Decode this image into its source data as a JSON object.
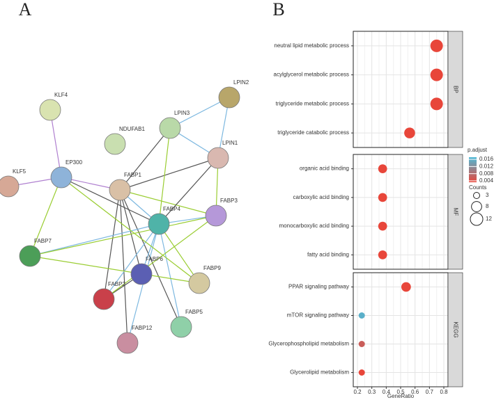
{
  "network": {
    "label": "A",
    "nodes": [
      "KLF4",
      "LPIN2",
      "LPIN3",
      "NDUFAB1",
      "LPIN1",
      "EP300",
      "KLF5",
      "FABP1",
      "FABP3",
      "FABP4",
      "FABP7",
      "FABP6",
      "FABP9",
      "FABP2",
      "FABP5",
      "FABP12"
    ]
  },
  "chart_data": {
    "type": "dot",
    "label": "B",
    "x_label": "GeneRatio",
    "xlim": [
      0.2,
      0.8
    ],
    "xticks": [
      0.2,
      0.3,
      0.4,
      0.5,
      0.6,
      0.7,
      0.8
    ],
    "grid": true,
    "facets": [
      {
        "name": "BP",
        "categories": [
          "neutral lipid metabolic process",
          "acylglycerol metabolic process",
          "triglyceride metabolic process",
          "triglyceride catabolic process"
        ],
        "values": [
          0.75,
          0.75,
          0.75,
          0.5625
        ],
        "counts": [
          12,
          12,
          12,
          9
        ],
        "p_adjust": [
          0.001,
          0.001,
          0.001,
          0.001
        ]
      },
      {
        "name": "MF",
        "categories": [
          "organic acid binding",
          "carboxylic acid binding",
          "monocarboxylic acid binding",
          "fatty acid binding"
        ],
        "values": [
          0.375,
          0.375,
          0.375,
          0.375
        ],
        "counts": [
          6,
          6,
          6,
          6
        ],
        "p_adjust": [
          0.001,
          0.001,
          0.001,
          0.001
        ]
      },
      {
        "name": "KEGG",
        "categories": [
          "PPAR signaling pathway",
          "mTOR signaling pathway",
          "Glycerophospholipid metabolism",
          "Glycerolipid metabolism"
        ],
        "values": [
          0.538,
          0.23,
          0.23,
          0.23
        ],
        "counts": [
          7,
          3,
          3,
          3
        ],
        "p_adjust": [
          0.001,
          0.016,
          0.006,
          0.003
        ]
      }
    ],
    "color_legend": {
      "title": "p.adjust",
      "clim": [
        0.0032,
        0.0172
      ],
      "ticks": [
        0.004,
        0.008,
        0.012,
        0.016
      ],
      "low_color": "#e8463a",
      "high_color": "#4db9d6"
    },
    "size_legend": {
      "title": "Counts",
      "values": [
        3,
        8,
        12
      ]
    }
  }
}
